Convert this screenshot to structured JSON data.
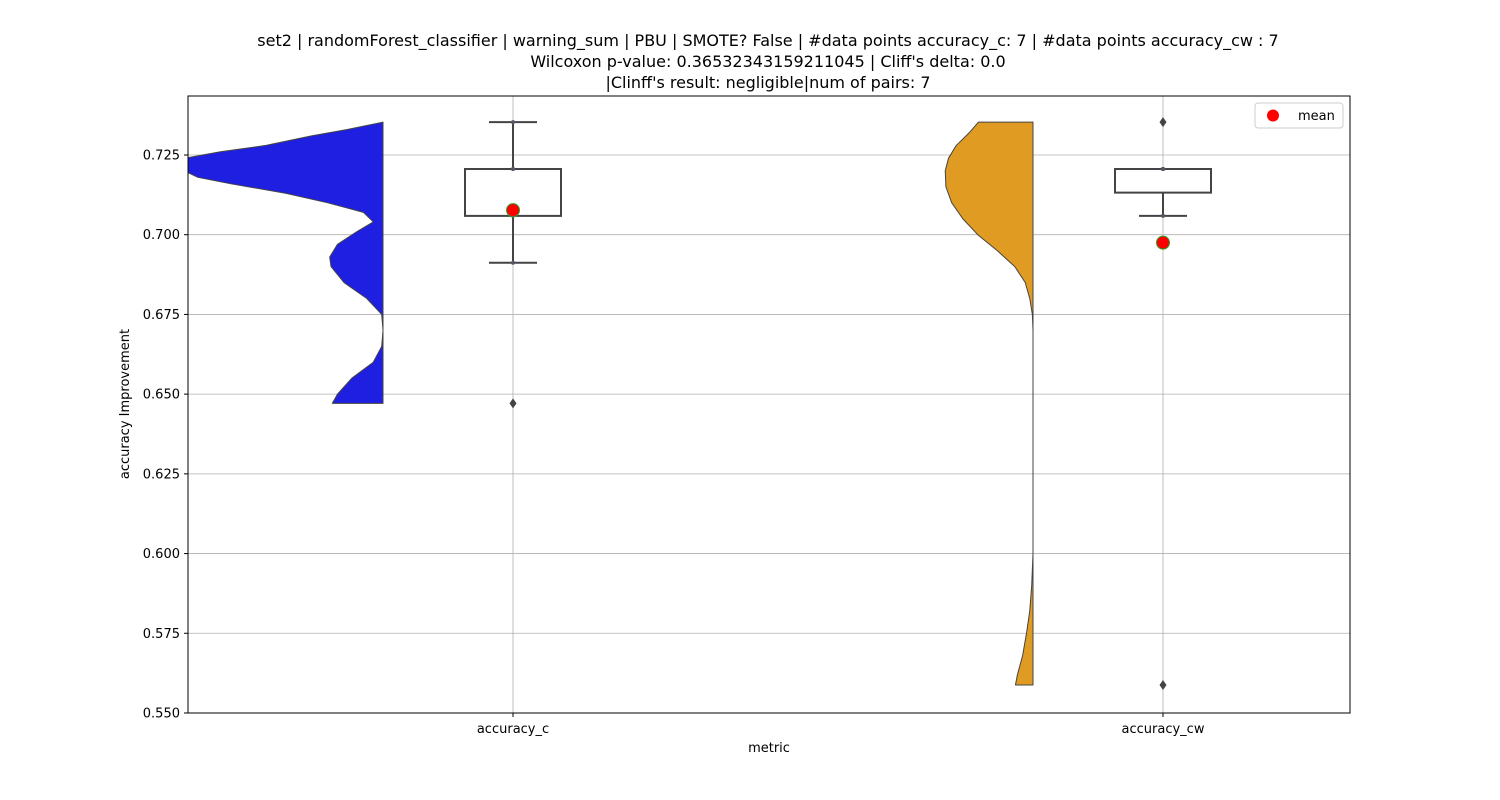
{
  "chart_data": {
    "type": "violin_box",
    "title_lines": [
      "set2 | randomForest_classifier | warning_sum | PBU | SMOTE? False | #data points accuracy_c: 7 | #data points accuracy_cw : 7",
      "Wilcoxon p-value: 0.36532343159211045 | Cliff's delta: 0.0",
      "|Clinff's result: negligible|num of pairs: 7"
    ],
    "xlabel": "metric",
    "ylabel": "accuracy Improvement",
    "ylim": [
      0.55,
      0.7435
    ],
    "yticks": [
      0.55,
      0.575,
      0.6,
      0.625,
      0.65,
      0.675,
      0.7,
      0.725
    ],
    "ytick_labels": [
      "0.550",
      "0.575",
      "0.600",
      "0.625",
      "0.650",
      "0.675",
      "0.700",
      "0.725"
    ],
    "grid": true,
    "legend": {
      "position": "top-right",
      "entries": [
        {
          "label": "mean",
          "color": "#ff0000",
          "marker": "circle"
        }
      ]
    },
    "categories": [
      "accuracy_c",
      "accuracy_cw"
    ],
    "series": [
      {
        "name": "accuracy_c",
        "violin_color": "#1f1fe2",
        "violin_profile": [
          [
            0.6471,
            0.78
          ],
          [
            0.65,
            0.7
          ],
          [
            0.655,
            0.48
          ],
          [
            0.66,
            0.15
          ],
          [
            0.665,
            0.02
          ],
          [
            0.67,
            0.0
          ],
          [
            0.675,
            0.02
          ],
          [
            0.68,
            0.25
          ],
          [
            0.685,
            0.6
          ],
          [
            0.69,
            0.8
          ],
          [
            0.693,
            0.82
          ],
          [
            0.697,
            0.7
          ],
          [
            0.701,
            0.4
          ],
          [
            0.704,
            0.15
          ],
          [
            0.707,
            0.3
          ],
          [
            0.71,
            0.85
          ],
          [
            0.713,
            1.5
          ],
          [
            0.716,
            2.35
          ],
          [
            0.718,
            2.85
          ],
          [
            0.72,
            3.05
          ],
          [
            0.722,
            3.15
          ],
          [
            0.724,
            3.05
          ],
          [
            0.726,
            2.5
          ],
          [
            0.728,
            1.8
          ],
          [
            0.731,
            1.1
          ],
          [
            0.733,
            0.55
          ],
          [
            0.7353,
            0.0
          ]
        ],
        "box": {
          "whisker_low": 0.6912,
          "q1": 0.7059,
          "median": 0.7206,
          "q3": 0.7206,
          "whisker_high": 0.7353
        },
        "points": [
          0.6912,
          0.7059,
          0.7206,
          0.7206,
          0.7353
        ],
        "outliers": [
          0.6471
        ],
        "mean": 0.7077
      },
      {
        "name": "accuracy_cw",
        "violin_color": "#e09c22",
        "violin_profile": [
          [
            0.5588,
            0.27
          ],
          [
            0.562,
            0.24
          ],
          [
            0.568,
            0.16
          ],
          [
            0.575,
            0.1
          ],
          [
            0.582,
            0.05
          ],
          [
            0.59,
            0.02
          ],
          [
            0.6,
            0.0
          ],
          [
            0.64,
            0.0
          ],
          [
            0.67,
            0.0
          ],
          [
            0.675,
            0.01
          ],
          [
            0.68,
            0.05
          ],
          [
            0.685,
            0.12
          ],
          [
            0.69,
            0.28
          ],
          [
            0.695,
            0.55
          ],
          [
            0.7,
            0.85
          ],
          [
            0.705,
            1.08
          ],
          [
            0.71,
            1.25
          ],
          [
            0.715,
            1.34
          ],
          [
            0.72,
            1.35
          ],
          [
            0.724,
            1.3
          ],
          [
            0.728,
            1.18
          ],
          [
            0.732,
            0.98
          ],
          [
            0.7353,
            0.84
          ]
        ],
        "box": {
          "whisker_low": 0.7059,
          "q1": 0.7132,
          "median": 0.7206,
          "q3": 0.7206,
          "whisker_high": 0.7206
        },
        "points": [
          0.7059,
          0.7206,
          0.7206,
          0.7206,
          0.7206
        ],
        "outliers": [
          0.5588,
          0.7353
        ],
        "mean": 0.6975
      }
    ]
  }
}
